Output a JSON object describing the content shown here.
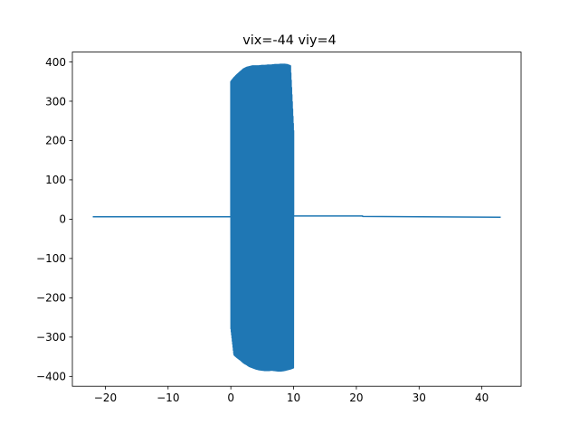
{
  "chart_data": {
    "type": "line",
    "title": "vix=-44 viy=4",
    "xlabel": "",
    "ylabel": "",
    "xlim": [
      -25.25,
      46.25
    ],
    "ylim": [
      -425,
      425
    ],
    "xticks": [
      -20,
      -10,
      0,
      10,
      20,
      30,
      40
    ],
    "xtick_labels": [
      "−20",
      "−10",
      "0",
      "10",
      "20",
      "30",
      "40"
    ],
    "yticks": [
      -400,
      -300,
      -200,
      -100,
      0,
      100,
      200,
      300,
      400
    ],
    "ytick_labels": [
      "−400",
      "−300",
      "−200",
      "−100",
      "0",
      "100",
      "200",
      "300",
      "400"
    ],
    "grid": false,
    "legend": "none",
    "line_color": "#1f77b4",
    "series": [
      {
        "segments": [
          {
            "description": "left flat segment",
            "x": [
              -22,
              0
            ],
            "y": [
              6,
              6
            ]
          },
          {
            "description": "oscillating burst (upper envelope / lower envelope sampled)",
            "x": [
              0.0,
              0.5,
              1.0,
              1.5,
              2.0,
              2.5,
              3.0,
              3.5,
              4.0,
              4.5,
              5.0,
              5.5,
              6.0,
              6.5,
              7.0,
              7.5,
              8.0,
              8.5,
              9.0,
              9.5,
              10.0
            ],
            "upper": [
              350,
              360,
              368,
              375,
              382,
              386,
              388,
              390,
              390,
              390,
              391,
              391,
              392,
              392,
              393,
              393,
              394,
              394,
              393,
              390,
              225
            ],
            "lower": [
              -275,
              -345,
              -352,
              -358,
              -365,
              -370,
              -375,
              -378,
              -381,
              -383,
              -384,
              -385,
              -385,
              -384,
              -385,
              -386,
              -386,
              -385,
              -383,
              -381,
              -378
            ]
          },
          {
            "description": "middle flat segment",
            "x": [
              10,
              21
            ],
            "y": [
              8,
              8
            ]
          },
          {
            "description": "right flat segment",
            "x": [
              21,
              43
            ],
            "y": [
              7,
              5
            ]
          }
        ]
      }
    ]
  }
}
